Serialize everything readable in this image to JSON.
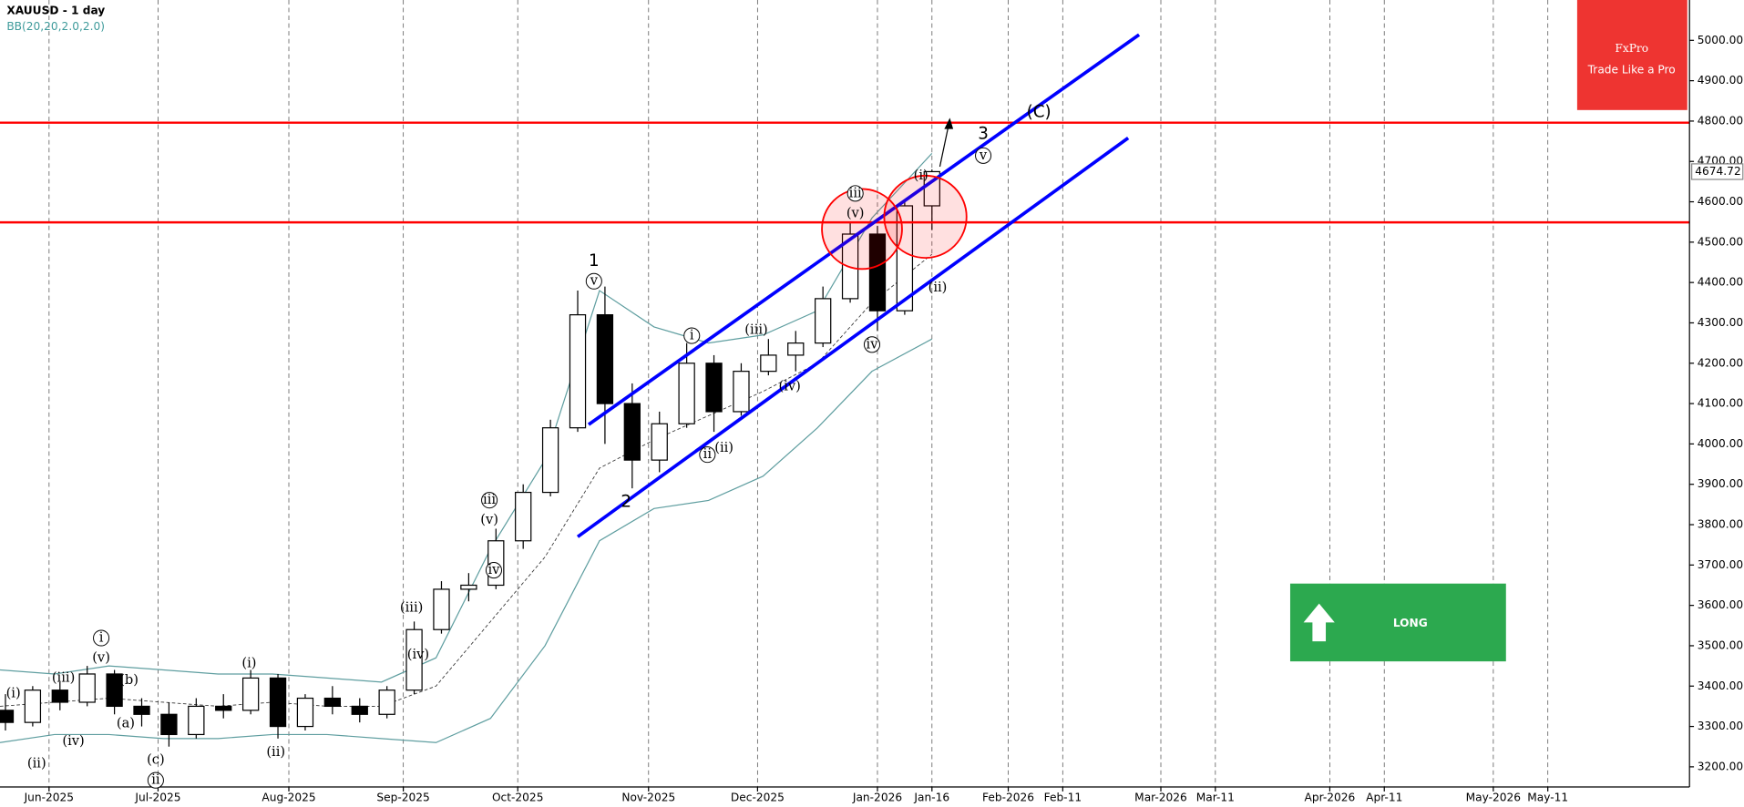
{
  "logo": {
    "name": "FxPro",
    "tagline": "Trade Like a Pro"
  },
  "signal": "LONG",
  "chart_data": {
    "type": "candlestick",
    "title": "XAUUSD - 1 day",
    "indicator": "BB(20,20,2.0,2.0)",
    "x": [
      1,
      6,
      11,
      16,
      21,
      26,
      31,
      36,
      41,
      46,
      51,
      56,
      61,
      66,
      71,
      76,
      81,
      86,
      91,
      96,
      101,
      106,
      111,
      116,
      121,
      126,
      131,
      136,
      141,
      146,
      151,
      156,
      161,
      166,
      171
    ],
    "open": [
      3340,
      3310,
      3390,
      3360,
      3430,
      3350,
      3330,
      3280,
      3350,
      3340,
      3420,
      3300,
      3370,
      3350,
      3330,
      3390,
      3540,
      3640,
      3650,
      3760,
      3880,
      4040,
      4320,
      4100,
      3960,
      4050,
      4200,
      4080,
      4180,
      4220,
      4250,
      4360,
      4520,
      4330,
      4590
    ],
    "high": [
      3380,
      3400,
      3410,
      3450,
      3440,
      3370,
      3360,
      3370,
      3380,
      3440,
      3430,
      3380,
      3400,
      3370,
      3400,
      3560,
      3660,
      3680,
      3790,
      3900,
      4060,
      4380,
      4390,
      4150,
      4080,
      4250,
      4220,
      4200,
      4260,
      4280,
      4390,
      4550,
      4540,
      4600,
      4680
    ],
    "low": [
      3290,
      3300,
      3340,
      3350,
      3330,
      3300,
      3250,
      3270,
      3320,
      3330,
      3270,
      3290,
      3330,
      3310,
      3320,
      3380,
      3530,
      3610,
      3640,
      3740,
      3870,
      4030,
      4000,
      3890,
      3930,
      4040,
      4030,
      4070,
      4170,
      4180,
      4240,
      4350,
      4280,
      4320,
      4530
    ],
    "close": [
      3310,
      3390,
      3360,
      3430,
      3350,
      3330,
      3280,
      3350,
      3340,
      3420,
      3300,
      3370,
      3350,
      3330,
      3390,
      3540,
      3640,
      3650,
      3760,
      3880,
      4040,
      4320,
      4100,
      3960,
      4050,
      4200,
      4080,
      4180,
      4220,
      4250,
      4360,
      4520,
      4330,
      4590,
      4674.72
    ],
    "up_color": "#ffffff",
    "down_color": "#000000",
    "bands": {
      "color": "#5f9ea0",
      "x": [
        0,
        10,
        20,
        30,
        40,
        50,
        60,
        70,
        80,
        90,
        100,
        110,
        120,
        130,
        140,
        150,
        160,
        171
      ],
      "upper": [
        3440,
        3430,
        3450,
        3440,
        3430,
        3430,
        3420,
        3410,
        3470,
        3740,
        3960,
        4380,
        4290,
        4250,
        4270,
        4330,
        4560,
        4720
      ],
      "middle": [
        3350,
        3360,
        3370,
        3360,
        3350,
        3360,
        3350,
        3350,
        3400,
        3560,
        3720,
        3940,
        4010,
        4070,
        4130,
        4200,
        4350,
        4470
      ],
      "lower": [
        3260,
        3280,
        3280,
        3270,
        3270,
        3280,
        3280,
        3270,
        3260,
        3320,
        3500,
        3760,
        3840,
        3860,
        3920,
        4040,
        4180,
        4260
      ]
    },
    "levels": {
      "color": "#ff0000",
      "values": [
        4796,
        4549
      ]
    },
    "channel": {
      "color": "#0000ff",
      "lines": [
        {
          "x": [
            108,
            209
          ],
          "values": [
            4048,
            5014
          ]
        },
        {
          "x": [
            106,
            207
          ],
          "values": [
            3770,
            4758
          ]
        }
      ]
    },
    "annotations": [
      "(i)",
      "(ii)",
      "(iii)",
      "(iv)",
      "i",
      "(v)",
      "(b)",
      "(a)",
      "(c)",
      "ii",
      "(i)",
      "(ii)",
      "(iii)",
      "(iv)",
      "iii",
      "(v)",
      "iv",
      "1",
      "v",
      "2",
      "i",
      "(i)",
      "ii",
      "(ii)",
      "(iii)",
      "(iv)",
      "iii",
      "(v)",
      "iv",
      "(i)",
      "(ii)",
      "3",
      "v",
      "(C)"
    ],
    "xlim": [
      0,
      310
    ],
    "xticks": [
      {
        "value": 9,
        "label": "Jun-2025"
      },
      {
        "value": 29,
        "label": "Jul-2025"
      },
      {
        "value": 53,
        "label": "Aug-2025"
      },
      {
        "value": 74,
        "label": "Sep-2025"
      },
      {
        "value": 95,
        "label": "Oct-2025"
      },
      {
        "value": 119,
        "label": "Nov-2025"
      },
      {
        "value": 139,
        "label": "Dec-2025"
      },
      {
        "value": 161,
        "label": "Jan-2026"
      },
      {
        "value": 171,
        "label": "Jan-16"
      },
      {
        "value": 185,
        "label": "Feb-2026"
      },
      {
        "value": 195,
        "label": "Feb-11"
      },
      {
        "value": 213,
        "label": "Mar-2026"
      },
      {
        "value": 223,
        "label": "Mar-11"
      },
      {
        "value": 244,
        "label": "Apr-2026"
      },
      {
        "value": 254,
        "label": "Apr-11"
      },
      {
        "value": 274,
        "label": "May-2026"
      },
      {
        "value": 284,
        "label": "May-11"
      }
    ],
    "ylim": [
      3150,
      5100
    ],
    "yticks": [
      {
        "value": 3200,
        "label": "3200.00"
      },
      {
        "value": 3300,
        "label": "3300.00"
      },
      {
        "value": 3400,
        "label": "3400.00"
      },
      {
        "value": 3500,
        "label": "3500.00"
      },
      {
        "value": 3600,
        "label": "3600.00"
      },
      {
        "value": 3700,
        "label": "3700.00"
      },
      {
        "value": 3800,
        "label": "3800.00"
      },
      {
        "value": 3900,
        "label": "3900.00"
      },
      {
        "value": 4000,
        "label": "4000.00"
      },
      {
        "value": 4100,
        "label": "4100.00"
      },
      {
        "value": 4200,
        "label": "4200.00"
      },
      {
        "value": 4300,
        "label": "4300.00"
      },
      {
        "value": 4400,
        "label": "4400.00"
      },
      {
        "value": 4500,
        "label": "4500.00"
      },
      {
        "value": 4600,
        "label": "4600.00"
      },
      {
        "value": 4700,
        "label": "4700.00"
      },
      {
        "value": 4800,
        "label": "4800.00"
      },
      {
        "value": 4900,
        "label": "4900.00"
      },
      {
        "value": 5000,
        "label": "5000.00"
      }
    ],
    "grid": true
  }
}
